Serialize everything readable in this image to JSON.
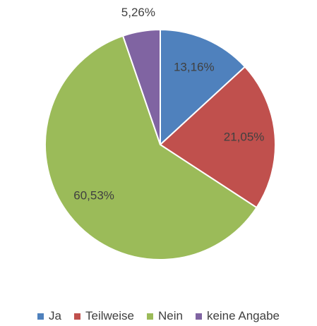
{
  "chart_data": {
    "type": "pie",
    "categories": [
      "Ja",
      "Teilweise",
      "Nein",
      "keine Angabe"
    ],
    "values": [
      13.16,
      21.05,
      60.53,
      5.26
    ],
    "value_labels": [
      "13,16%",
      "21,05%",
      "60,53%",
      "5,26%"
    ],
    "colors": [
      "#4f81bd",
      "#c0504d",
      "#9bbb59",
      "#8064a2"
    ],
    "legend": "bottom"
  }
}
